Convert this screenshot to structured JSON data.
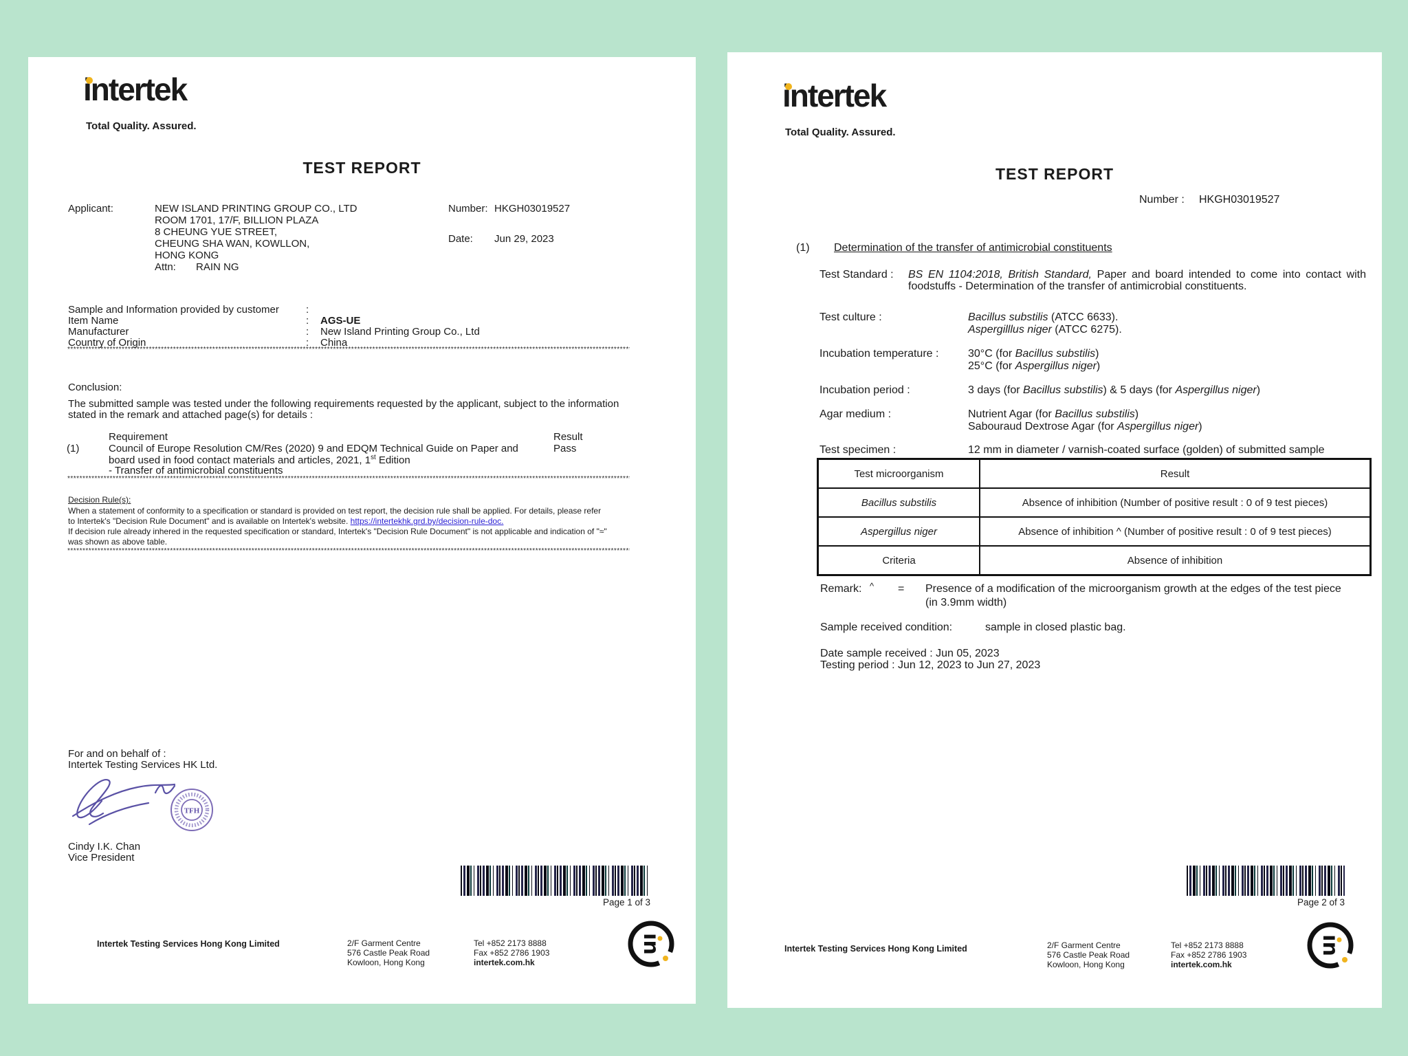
{
  "background_color": "#b9e4cd",
  "accent_yellow": "#f0b41e",
  "link_color": "#2a1fd4",
  "signature_ink": "#5a51a5",
  "stamp_color": "#7d6cb6",
  "separator": "********************************************************************************************************************************************************************************************************************",
  "brand": {
    "wordmark": "intertek",
    "tagline": "Total Quality. Assured."
  },
  "footer": {
    "company": "Intertek Testing Services Hong Kong Limited",
    "address": [
      "2/F Garment Centre",
      "576 Castle Peak Road",
      "Kowloon, Hong Kong"
    ],
    "contact": [
      "Tel +852 2173 8888",
      "Fax +852 2786 1903",
      "intertek.com.hk"
    ]
  },
  "page1": {
    "title": "TEST REPORT",
    "applicant_label": "Applicant:",
    "applicant_lines": [
      "NEW ISLAND PRINTING GROUP CO., LTD",
      "ROOM 1701, 17/F, BILLION PLAZA",
      "8 CHEUNG YUE STREET,",
      "CHEUNG SHA WAN, KOWLLON,",
      "HONG KONG"
    ],
    "attn_label": "Attn:",
    "attn_value": "RAIN NG",
    "number_label": "Number:",
    "number_value": "HKGH03019527",
    "date_label": "Date:",
    "date_value": "Jun 29, 2023",
    "sample_header": "Sample and Information provided by customer",
    "colon": ":",
    "sample_rows": [
      {
        "label": "Item Name",
        "value": "AGS-UE"
      },
      {
        "label": "Manufacturer",
        "value": "New Island Printing Group Co., Ltd"
      },
      {
        "label": "Country of Origin",
        "value": "China"
      }
    ],
    "conclusion_heading": "Conclusion:",
    "conclusion_line1": "The submitted sample was tested under the following requirements requested by the applicant, subject to the information",
    "conclusion_line2": "stated in the remark and attached page(s) for details :",
    "requirement_header": "Requirement",
    "result_header": "Result",
    "requirement_index": "(1)",
    "requirement_line1": "Council of Europe Resolution CM/Res (2020) 9 and EDQM Technical Guide on Paper and",
    "requirement_line2": [
      {
        "t": "board used in food contact materials and articles, 2021, 1"
      },
      {
        "t": "st",
        "s": true
      },
      {
        "t": " Edition"
      }
    ],
    "requirement_line3": "- Transfer of antimicrobial constituents",
    "result_value": "Pass",
    "decision_heading": "Decision Rule(s):",
    "decision_line1": "When a statement of conformity to a specification or standard is provided on test report, the decision rule shall be applied. For details, please refer",
    "decision_line2_pre": "to Intertek's \"Decision Rule Document\" and is available on Intertek's website. ",
    "decision_link": "https://intertekhk.grd.by/decision-rule-doc.",
    "decision_line3": "If decision rule already inhered in the requested specification or standard, Intertek's \"Decision Rule Document\" is not applicable and indication of \"≈\"",
    "decision_line4": "was shown as above table.",
    "behalf_line1": "For and on behalf of :",
    "behalf_line2": "Intertek Testing Services HK Ltd.",
    "stamp_text": "TFH",
    "signer_name": "Cindy I.K. Chan",
    "signer_title": "Vice President",
    "page_label": "Page 1 of 3"
  },
  "page2": {
    "title": "TEST REPORT",
    "number_label": "Number :",
    "number_value": "HKGH03019527",
    "section_index": "(1)",
    "section_title": "Determination of the transfer of antimicrobial constituents",
    "test_standard_label": "Test Standard :",
    "test_standard_value": [
      {
        "t": "BS EN 1104:2018, British Standard,",
        "i": true
      },
      {
        "t": " Paper and board intended to come into contact with foodstuffs - Determination of the transfer of antimicrobial constituents."
      }
    ],
    "test_culture_label": "Test culture :",
    "test_culture_line1": [
      {
        "t": "Bacillus substilis",
        "i": true
      },
      {
        "t": " (ATCC 6633)."
      }
    ],
    "test_culture_line2": [
      {
        "t": "Aspergilllus niger",
        "i": true
      },
      {
        "t": " (ATCC 6275)."
      }
    ],
    "incubation_temp_label": "Incubation temperature :",
    "incubation_temp_line1": [
      {
        "t": "30°C (for "
      },
      {
        "t": "Bacillus substilis",
        "i": true
      },
      {
        "t": ")"
      }
    ],
    "incubation_temp_line2": [
      {
        "t": "25°C (for "
      },
      {
        "t": "Aspergillus niger",
        "i": true
      },
      {
        "t": ")"
      }
    ],
    "incubation_period_label": "Incubation period :",
    "incubation_period_line": [
      {
        "t": "3 days (for "
      },
      {
        "t": "Bacillus substilis",
        "i": true
      },
      {
        "t": ") & 5 days (for "
      },
      {
        "t": "Aspergillus niger",
        "i": true
      },
      {
        "t": ")"
      }
    ],
    "agar_label": "Agar medium :",
    "agar_line1": [
      {
        "t": "Nutrient Agar (for "
      },
      {
        "t": "Bacillus substilis",
        "i": true
      },
      {
        "t": ")"
      }
    ],
    "agar_line2": [
      {
        "t": "Sabouraud Dextrose Agar (for "
      },
      {
        "t": "Aspergillus niger",
        "i": true
      },
      {
        "t": ")"
      }
    ],
    "specimen_label": "Test specimen :",
    "specimen_line": [
      {
        "t": "12 mm in diameter / varnish-coated surface (golden) of submitted sample"
      }
    ],
    "table": {
      "col1_header": "Test microorganism",
      "col2_header": "Result",
      "rows": [
        {
          "org": [
            {
              "t": "Bacillus substilis",
              "i": true
            }
          ],
          "result": "Absence of inhibition (Number of positive result : 0 of 9 test pieces)"
        },
        {
          "org": [
            {
              "t": "Aspergillus niger",
              "i": true
            }
          ],
          "result": "Absence of inhibition ^ (Number of positive result : 0 of 9 test pieces)"
        },
        {
          "org": [
            {
              "t": "Criteria"
            }
          ],
          "result": "Absence of inhibition"
        }
      ]
    },
    "remark_label": "Remark:",
    "remark_symbol": "^",
    "remark_equals": "=",
    "remark_line1": "Presence of a modification of the microorganism growth at the edges of the test piece",
    "remark_line2": "(in 3.9mm width)",
    "condition_label": "Sample received condition:",
    "condition_value": "sample in closed plastic bag.",
    "date_received": "Date sample received : Jun 05, 2023",
    "testing_period": "Testing period : Jun 12, 2023 to Jun 27, 2023",
    "page_label": "Page 2 of 3"
  }
}
